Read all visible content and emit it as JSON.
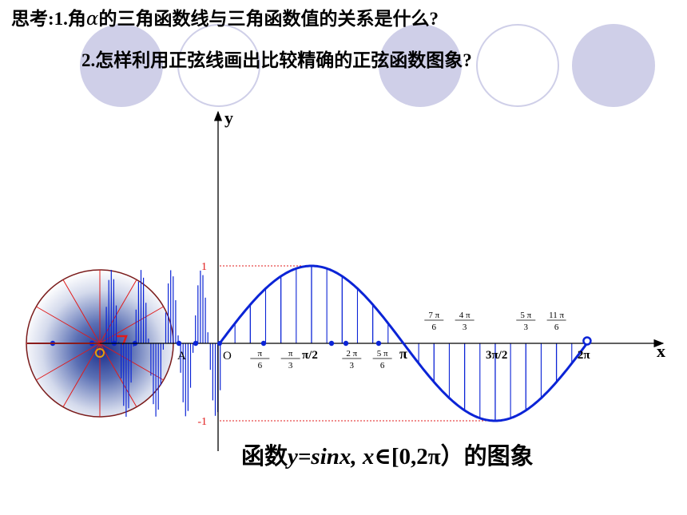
{
  "question": {
    "line1_prefix": "思考:1.角",
    "alpha": "α",
    "line1_suffix": "的三角函数线与三角函数值的关系是什么?",
    "line2": "2.怎样利用正弦线画出比较精确的正弦函数图象?"
  },
  "caption": {
    "prefix": "函数",
    "func": "y=sinx,",
    "domain_var": "x",
    "domain": "∈[0,2π）的图象"
  },
  "colors": {
    "axis": "#000000",
    "curve": "#0b24d6",
    "sine_lines": "#0b24d6",
    "radii": "#e01b1b",
    "dotted_guides": "#e01b1b",
    "decoration": "#cfcfe8"
  },
  "chart_data": {
    "type": "line",
    "function": "y = sin x",
    "x_range": [
      "0",
      "2π"
    ],
    "y_range": [
      -1,
      1
    ],
    "axis_labels": {
      "x": "x",
      "y": "y"
    },
    "origin_label": "O",
    "point_label": "A",
    "y_ticks": [
      {
        "label": "1",
        "value": 1
      },
      {
        "label": "-1",
        "value": -1
      }
    ],
    "x_ticks": [
      {
        "label": "π/6",
        "value": 0.5236,
        "kind": "frac",
        "num": "π",
        "den": "6",
        "side": "below"
      },
      {
        "label": "π/3",
        "value": 1.0472,
        "kind": "frac",
        "num": "π",
        "den": "3",
        "side": "below"
      },
      {
        "label": "π/2",
        "value": 1.5708,
        "kind": "plain",
        "text": "π/2",
        "side": "below"
      },
      {
        "label": "2π/3",
        "value": 2.0944,
        "kind": "frac",
        "num": "2 π",
        "den": "3",
        "side": "below"
      },
      {
        "label": "5π/6",
        "value": 2.618,
        "kind": "frac",
        "num": "5 π",
        "den": "6",
        "side": "below"
      },
      {
        "label": "π",
        "value": 3.1416,
        "kind": "plain",
        "text": "π",
        "side": "below"
      },
      {
        "label": "7π/6",
        "value": 3.6652,
        "kind": "frac",
        "num": "7 π",
        "den": "6",
        "side": "above"
      },
      {
        "label": "4π/3",
        "value": 4.1888,
        "kind": "frac",
        "num": "4 π",
        "den": "3",
        "side": "above"
      },
      {
        "label": "3π/2",
        "value": 4.7124,
        "kind": "plain",
        "text": "3π/2",
        "side": "below"
      },
      {
        "label": "5π/3",
        "value": 5.236,
        "kind": "frac",
        "num": "5 π",
        "den": "3",
        "side": "above"
      },
      {
        "label": "11π/6",
        "value": 5.7596,
        "kind": "frac",
        "num": "11 π",
        "den": "6",
        "side": "above"
      },
      {
        "label": "2π",
        "value": 6.2832,
        "kind": "plain",
        "text": "2π",
        "side": "below"
      }
    ],
    "points": [
      {
        "x": "0",
        "y": 0
      },
      {
        "x": "π/6",
        "y": 0.5
      },
      {
        "x": "π/3",
        "y": 0.866
      },
      {
        "x": "π/2",
        "y": 1
      },
      {
        "x": "2π/3",
        "y": 0.866
      },
      {
        "x": "5π/6",
        "y": 0.5
      },
      {
        "x": "π",
        "y": 0
      },
      {
        "x": "7π/6",
        "y": -0.5
      },
      {
        "x": "4π/3",
        "y": -0.866
      },
      {
        "x": "3π/2",
        "y": -1
      },
      {
        "x": "5π/3",
        "y": -0.866
      },
      {
        "x": "11π/6",
        "y": -0.5
      },
      {
        "x": "2π",
        "y": 0
      }
    ],
    "unit_circle_divisions": 12
  }
}
